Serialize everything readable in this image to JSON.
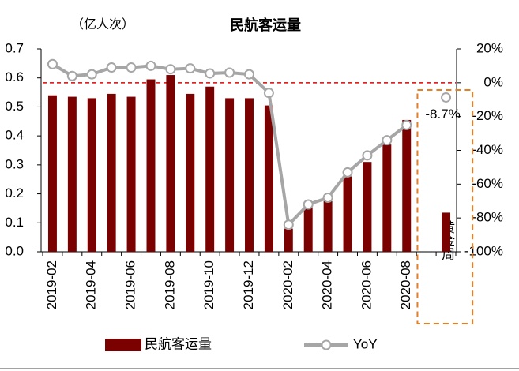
{
  "chart_data": {
    "type": "bar_line",
    "title": "民航客运量",
    "y_label": "（亿人次）",
    "categories": [
      "2019-02",
      null,
      "2019-04",
      null,
      "2019-06",
      null,
      "2019-08",
      null,
      "2019-10",
      null,
      "2019-12",
      null,
      "2020-02",
      null,
      "2020-04",
      null,
      "2020-06",
      null,
      "2020-08",
      null,
      "黄金周"
    ],
    "series": [
      {
        "name": "民航客运量",
        "type": "bar",
        "axis": "y",
        "color": "#7b0000",
        "values": [
          0.54,
          0.535,
          0.53,
          0.545,
          0.535,
          0.595,
          0.61,
          0.545,
          0.57,
          0.53,
          0.53,
          0.505,
          0.08,
          0.155,
          0.175,
          0.26,
          0.31,
          0.37,
          0.455,
          null,
          0.135
        ]
      },
      {
        "name": "YoY",
        "type": "line",
        "axis": "y2",
        "color": "#a6a6a6",
        "values": [
          11,
          4,
          5,
          9,
          9,
          10,
          8,
          8.5,
          5.5,
          6,
          5,
          -6,
          -84,
          -72,
          -68,
          -53,
          -43,
          -34,
          -25,
          null,
          -8.7
        ],
        "value_labels": [
          null,
          null,
          null,
          null,
          null,
          null,
          null,
          null,
          null,
          null,
          null,
          null,
          null,
          null,
          null,
          null,
          null,
          null,
          null,
          null,
          "-8.7%"
        ]
      }
    ],
    "ylim": [
      0,
      0.7
    ],
    "yticks": [
      {
        "value": 0,
        "label": "0.0"
      },
      0.1,
      0.2,
      0.3,
      0.4,
      0.5,
      0.6,
      0.7
    ],
    "y2lim": [
      -100,
      20
    ],
    "y2ticks": [
      {
        "value": 20,
        "label": "20%"
      },
      {
        "value": 0,
        "label": "0%"
      },
      {
        "value": -20,
        "label": "-20%"
      },
      {
        "value": -40,
        "label": "-40%"
      },
      {
        "value": -60,
        "label": "-60%"
      },
      {
        "value": -80,
        "label": "-80%"
      },
      {
        "value": -100,
        "label": "-100%"
      }
    ],
    "hline": {
      "value": 0,
      "axis": "y2",
      "color": "#e00000"
    },
    "highlight_color": "#e67e22",
    "legend": "bottom"
  }
}
